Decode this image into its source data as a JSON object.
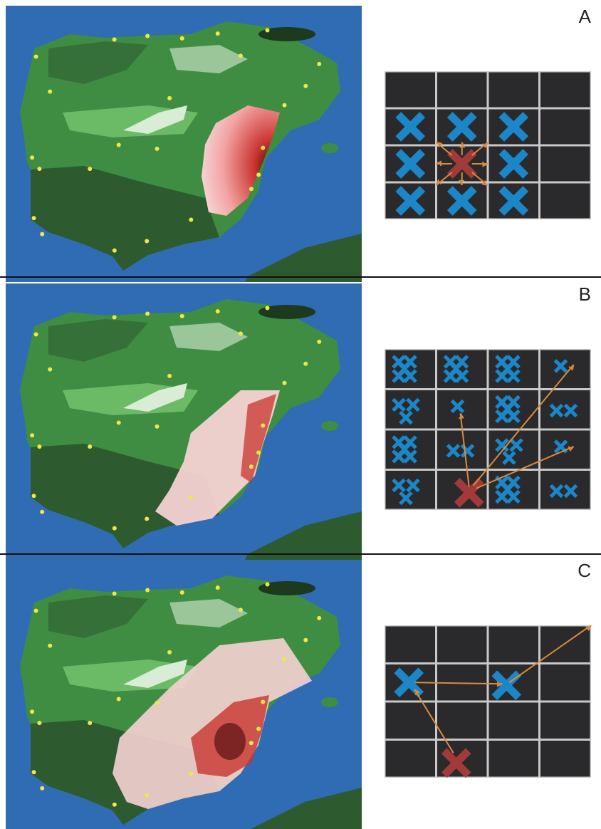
{
  "panels": [
    {
      "letter": "A",
      "spread": "local",
      "mode": "neighbour-diffusion"
    },
    {
      "letter": "B",
      "spread": "long-range",
      "mode": "multi-jump"
    },
    {
      "letter": "C",
      "spread": "random-walk",
      "mode": "single-chain"
    }
  ],
  "colors": {
    "sea": "#2f6cb4",
    "land_dark": "#2d5a2f",
    "land_mid": "#3f8d43",
    "land_light": "#6fbf6a",
    "land_pale": "#d8ecd6",
    "points": "#f1e74a",
    "infection": "#c9342f",
    "infection_light": "#f6d2d2",
    "cell": "#2a2a2c",
    "cell_grid": "#c9c9c9",
    "blue_cross": "#1b87c9",
    "red_cross": "#a13a38",
    "arrow": "#d98b3e"
  }
}
